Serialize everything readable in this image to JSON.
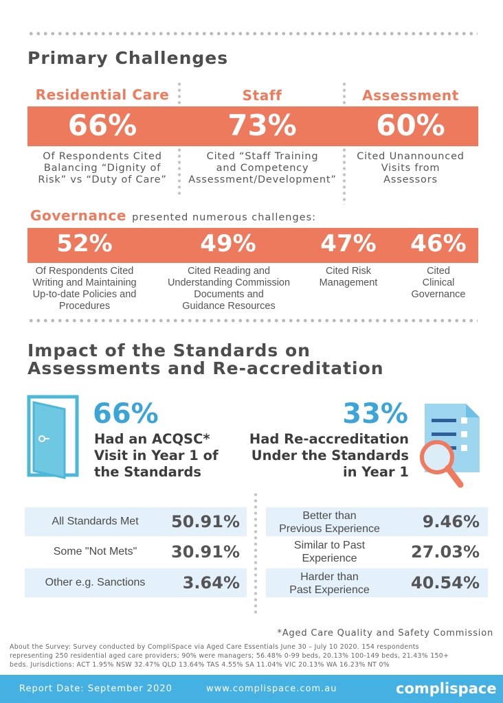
{
  "primary": {
    "title": "Primary Challenges",
    "columns": [
      {
        "heading": "Residential Care",
        "value": "66%",
        "desc": [
          "Of Respondents Cited",
          "Balancing “Dignity of",
          "Risk” vs “Duty of Care”"
        ]
      },
      {
        "heading": "Staff",
        "value": "73%",
        "desc": [
          "Cited “Staff Training",
          "and Competency",
          "Assessment/Development”"
        ]
      },
      {
        "heading": "Assessment",
        "value": "60%",
        "desc": [
          "Cited Unannounced",
          "Visits from",
          "Assessors"
        ]
      }
    ]
  },
  "governance": {
    "heading": "Governance",
    "subtitle": "presented numerous challenges:",
    "items": [
      {
        "value": "52%",
        "desc": [
          "Of Respondents Cited",
          "Writing and Maintaining",
          "Up-to-date Policies and",
          "Procedures"
        ]
      },
      {
        "value": "49%",
        "desc": [
          "Cited Reading and",
          "Understanding Commission",
          "Documents and",
          "Guidance Resources"
        ]
      },
      {
        "value": "47%",
        "desc": [
          "Cited Risk",
          "Management"
        ]
      },
      {
        "value": "46%",
        "desc": [
          "Cited",
          "Clinical",
          "Governance"
        ]
      }
    ]
  },
  "impact": {
    "title_line1": "Impact of the Standards on",
    "title_line2": "Assessments and Re-accreditation",
    "left": {
      "value": "66%",
      "lines": [
        "Had an ACQSC*",
        "Visit in Year 1 of",
        "the Standards"
      ],
      "icon": "door-icon"
    },
    "right": {
      "value": "33%",
      "lines": [
        "Had Re-accreditation",
        "Under the Standards",
        "in Year 1"
      ],
      "icon": "checklist-magnifier-icon"
    },
    "left_rows": [
      {
        "label": [
          "All Standards Met"
        ],
        "value": "50.91%"
      },
      {
        "label": [
          "Some \"Not Mets\""
        ],
        "value": "30.91%"
      },
      {
        "label": [
          "Other e.g. Sanctions"
        ],
        "value": "3.64%"
      }
    ],
    "right_rows": [
      {
        "label": [
          "Better than",
          "Previous Experience"
        ],
        "value": "9.46%"
      },
      {
        "label": [
          "Similar to Past",
          "Experience"
        ],
        "value": "27.03%"
      },
      {
        "label": [
          "Harder than",
          "Past Experience"
        ],
        "value": "40.54%"
      }
    ]
  },
  "footnote": "*Aged Care Quality and Safety Commission",
  "survey": {
    "lines": [
      "About the Survey: Survey conducted by CompliSpace via Aged Care Essentials June 30 – July 10 2020. 154 respondents",
      "representing 250 residential aged care providers; 90% were managers; 56.48% 0-99 beds, 20.13% 100-149 beds, 21.43% 150+",
      "beds. Jurisdictions: ACT 1.95% NSW 32.47% QLD 13.64% TAS 4.55% SA 11.04% VIC 20.13% WA 16.23% NT 0%"
    ]
  },
  "footer": {
    "report_date": "Report Date: September 2020",
    "website": "www.complispace.com.au",
    "logo": "complispace"
  },
  "colors": {
    "accent": "#ee7a5d",
    "teal": "#3ca5d8",
    "row_bg": "#e5f1fa",
    "footer": "#45b0e2"
  }
}
